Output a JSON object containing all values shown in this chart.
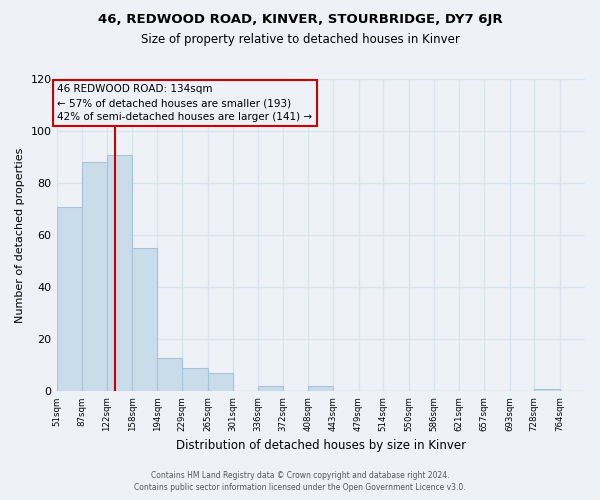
{
  "title": "46, REDWOOD ROAD, KINVER, STOURBRIDGE, DY7 6JR",
  "subtitle": "Size of property relative to detached houses in Kinver",
  "xlabel": "Distribution of detached houses by size in Kinver",
  "ylabel": "Number of detached properties",
  "bar_edges": [
    51,
    87,
    122,
    158,
    194,
    229,
    265,
    301,
    336,
    372,
    408,
    443,
    479,
    514,
    550,
    586,
    621,
    657,
    693,
    728,
    764
  ],
  "bar_heights": [
    71,
    88,
    91,
    55,
    13,
    9,
    7,
    0,
    2,
    0,
    2,
    0,
    0,
    0,
    0,
    0,
    0,
    0,
    0,
    1,
    0
  ],
  "bar_color": "#c8dcea",
  "bar_edge_color": "#a8c4d8",
  "property_line_x": 134,
  "property_line_color": "#cc0000",
  "ylim": [
    0,
    120
  ],
  "yticks": [
    0,
    20,
    40,
    60,
    80,
    100,
    120
  ],
  "annotation_title": "46 REDWOOD ROAD: 134sqm",
  "annotation_line1": "← 57% of detached houses are smaller (193)",
  "annotation_line2": "42% of semi-detached houses are larger (141) →",
  "footer_line1": "Contains HM Land Registry data © Crown copyright and database right 2024.",
  "footer_line2": "Contains public sector information licensed under the Open Government Licence v3.0.",
  "tick_labels": [
    "51sqm",
    "87sqm",
    "122sqm",
    "158sqm",
    "194sqm",
    "229sqm",
    "265sqm",
    "301sqm",
    "336sqm",
    "372sqm",
    "408sqm",
    "443sqm",
    "479sqm",
    "514sqm",
    "550sqm",
    "586sqm",
    "621sqm",
    "657sqm",
    "693sqm",
    "728sqm",
    "764sqm"
  ],
  "bg_color": "#eef2f7",
  "grid_color": "#d8e4ee"
}
